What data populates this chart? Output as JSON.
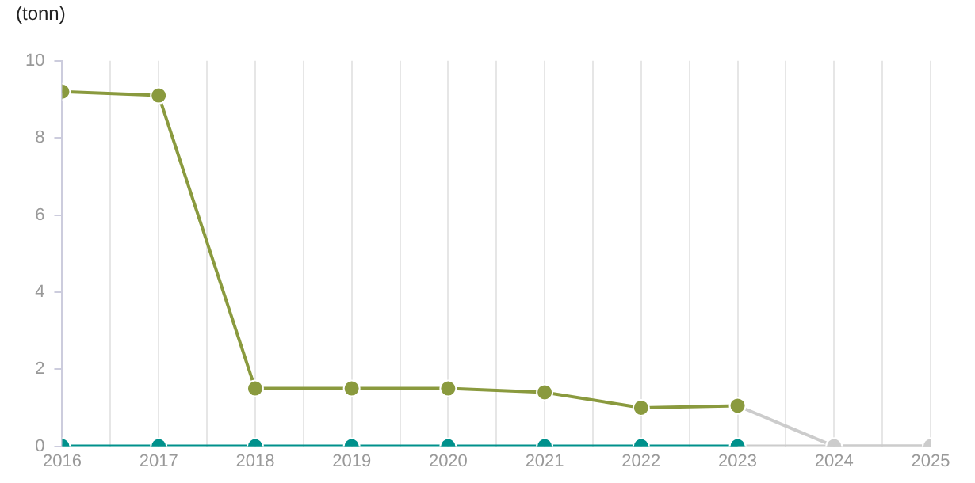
{
  "chart_data": {
    "type": "line",
    "ylabel": "(tonn)",
    "x": [
      2016,
      2017,
      2018,
      2019,
      2020,
      2021,
      2022,
      2023
    ],
    "series": [
      {
        "color": "#cccccc",
        "x": [
          2023,
          2024,
          2025
        ],
        "values": [
          1.05,
          0,
          0
        ]
      },
      {
        "color": "#cccccc",
        "x": [
          2023,
          2024,
          2025
        ],
        "values": [
          0,
          0,
          0
        ]
      },
      {
        "color": "#8a9a3e",
        "values": [
          9.2,
          9.1,
          1.5,
          1.5,
          1.5,
          1.4,
          1.0,
          1.05
        ]
      },
      {
        "color": "#00918c",
        "values": [
          0,
          0,
          0,
          0,
          0,
          0,
          0,
          0
        ]
      }
    ],
    "xlim": [
      2016,
      2025
    ],
    "xticks": [
      2016,
      {
        "value": 2016.5,
        "label": null
      },
      2017,
      {
        "value": 2017.5,
        "label": null
      },
      2018,
      {
        "value": 2018.5,
        "label": null
      },
      2019,
      {
        "value": 2019.5,
        "label": null
      },
      2020,
      {
        "value": 2020.5,
        "label": null
      },
      2021,
      {
        "value": 2021.5,
        "label": null
      },
      2022,
      {
        "value": 2022.5,
        "label": null
      },
      2023,
      {
        "value": 2023.5,
        "label": null
      },
      2024,
      {
        "value": 2024.5,
        "label": null
      },
      2025
    ],
    "ylim": [
      0,
      10
    ],
    "yticks": [
      0,
      2,
      4,
      6,
      8,
      10
    ],
    "grid": "x",
    "legend": false,
    "marker": "circle",
    "line_style": "solid"
  }
}
